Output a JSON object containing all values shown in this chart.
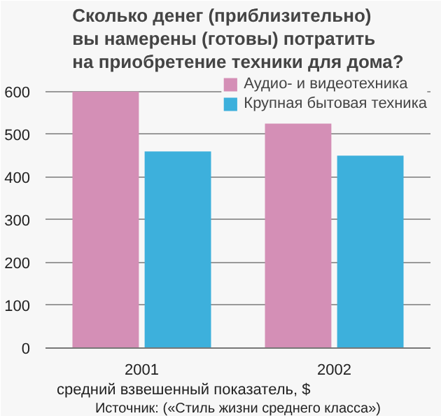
{
  "chart_data": {
    "type": "bar",
    "title": "Сколько денег (приблизительно)\nвы намерены (готовы) потратить\nна приобретение техники для дома?",
    "categories": [
      "2001",
      "2002"
    ],
    "series": [
      {
        "name": "Аудио- и видеотехника",
        "color": "#d48fb6",
        "values": [
          600,
          525
        ]
      },
      {
        "name": "Крупная бытовая техника",
        "color": "#3db0dc",
        "values": [
          460,
          450
        ]
      }
    ],
    "ylim": [
      0,
      600
    ],
    "yticks": [
      0,
      100,
      200,
      300,
      400,
      500,
      600
    ],
    "grid": "y",
    "legend": "top right",
    "annotations": [
      "средний взвешенный показатель, $",
      "Источник: («Стиль жизни среднего класса»)"
    ]
  }
}
